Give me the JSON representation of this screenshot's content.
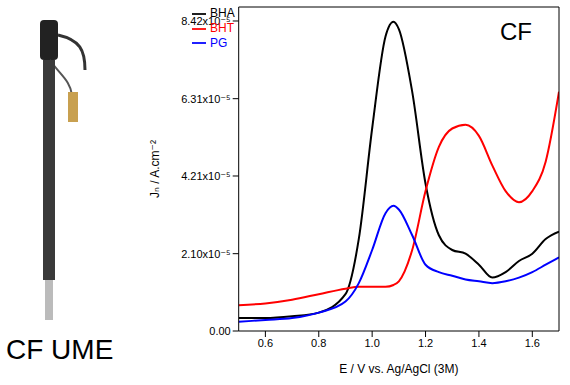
{
  "chart_data": {
    "type": "line",
    "annotations": [
      "CF",
      "CF UME"
    ],
    "x_label": "E / V vs. Ag/AgCl (3M)",
    "y_label": "Jₙ / A.cm⁻²",
    "x": [
      0.5,
      0.6,
      0.7,
      0.8,
      0.9,
      0.95,
      1.0,
      1.05,
      1.08,
      1.1,
      1.15,
      1.2,
      1.25,
      1.3,
      1.35,
      1.4,
      1.45,
      1.5,
      1.55,
      1.6,
      1.65,
      1.7
    ],
    "series": [
      {
        "name": "BHA",
        "color": "#000000",
        "values": [
          3.5e-06,
          3.5e-06,
          4e-06,
          5e-06,
          1e-05,
          2.5e-05,
          5.5e-05,
          8e-05,
          8.4e-05,
          8.2e-05,
          6.5e-05,
          4e-05,
          2.6e-05,
          2.2e-05,
          2.1e-05,
          1.8e-05,
          1.45e-05,
          1.6e-05,
          1.9e-05,
          2.1e-05,
          2.5e-05,
          2.7e-05
        ]
      },
      {
        "name": "BHT",
        "color": "#ff0000",
        "values": [
          7e-06,
          7.5e-06,
          8.5e-06,
          1e-05,
          1.15e-05,
          1.2e-05,
          1.2e-05,
          1.2e-05,
          1.25e-05,
          1.35e-05,
          2.2e-05,
          3.8e-05,
          5e-05,
          5.5e-05,
          5.6e-05,
          5.3e-05,
          4.5e-05,
          3.8e-05,
          3.5e-05,
          3.8e-05,
          4.6e-05,
          6.5e-05
        ]
      },
      {
        "name": "PG",
        "color": "#0000ff",
        "values": [
          2.5e-06,
          3e-06,
          3.5e-06,
          5e-06,
          8e-06,
          1.3e-05,
          2.2e-05,
          3.2e-05,
          3.4e-05,
          3.3e-05,
          2.6e-05,
          1.8e-05,
          1.6e-05,
          1.5e-05,
          1.4e-05,
          1.35e-05,
          1.3e-05,
          1.35e-05,
          1.45e-05,
          1.6e-05,
          1.8e-05,
          2e-05
        ]
      }
    ],
    "xlim": [
      0.5,
      1.7
    ],
    "xticks": [
      0.6,
      0.8,
      {
        "value": 1,
        "label": "1.0"
      },
      1.2,
      1.4,
      1.6
    ],
    "ylim": [
      0,
      8.8e-05
    ],
    "yticks": [
      {
        "value": 0,
        "label": "0.00"
      },
      {
        "value": 2.1e-05,
        "label": "2.10x10⁻⁵"
      },
      {
        "value": 4.21e-05,
        "label": "4.21x10⁻⁵"
      },
      {
        "value": 6.31e-05,
        "label": "6.31x10⁻⁵"
      },
      {
        "value": 8.42e-05,
        "label": "8.42x10⁻⁵"
      }
    ],
    "grid": false,
    "legend": "upper left"
  }
}
